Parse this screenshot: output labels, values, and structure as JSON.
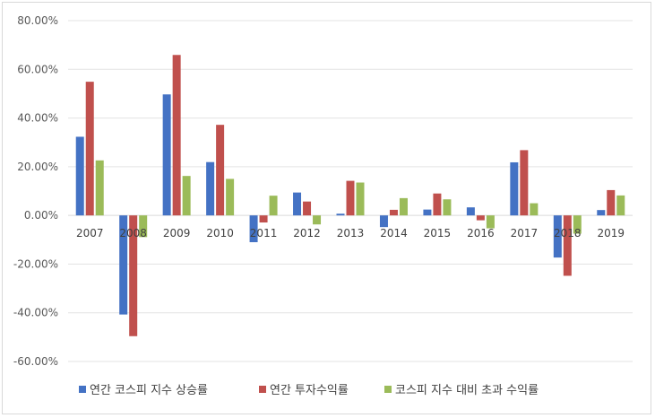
{
  "chart_data": {
    "type": "bar",
    "categories": [
      "2007",
      "2008",
      "2009",
      "2010",
      "2011",
      "2012",
      "2013",
      "2014",
      "2015",
      "2016",
      "2017",
      "2018",
      "2019"
    ],
    "series": [
      {
        "name": "연간 코스피 지수 상승률",
        "color": "#4472c4",
        "values": [
          32.3,
          -40.7,
          49.7,
          21.9,
          -11.0,
          9.4,
          0.7,
          -4.8,
          2.4,
          3.3,
          21.8,
          -17.3,
          2.2
        ]
      },
      {
        "name": "연간 투자수익률",
        "color": "#c0504d",
        "values": [
          54.9,
          -49.6,
          65.9,
          37.2,
          -2.9,
          5.7,
          14.2,
          2.3,
          9.0,
          -2.0,
          26.8,
          -24.8,
          10.4
        ]
      },
      {
        "name": "코스피 지수 대비 초과 수익률",
        "color": "#9bbb59",
        "values": [
          22.6,
          -8.9,
          16.2,
          15.0,
          8.1,
          -3.7,
          13.5,
          7.1,
          6.6,
          -5.3,
          5.0,
          -7.5,
          8.2
        ]
      }
    ],
    "yticks": [
      "80.00%",
      "60.00%",
      "40.00%",
      "20.00%",
      "0.00%",
      "-20.00%",
      "-40.00%",
      "-60.00%"
    ],
    "ylim": [
      -60,
      80
    ],
    "grid": true,
    "legend_position": "bottom",
    "title": "",
    "xlabel": "",
    "ylabel": ""
  }
}
